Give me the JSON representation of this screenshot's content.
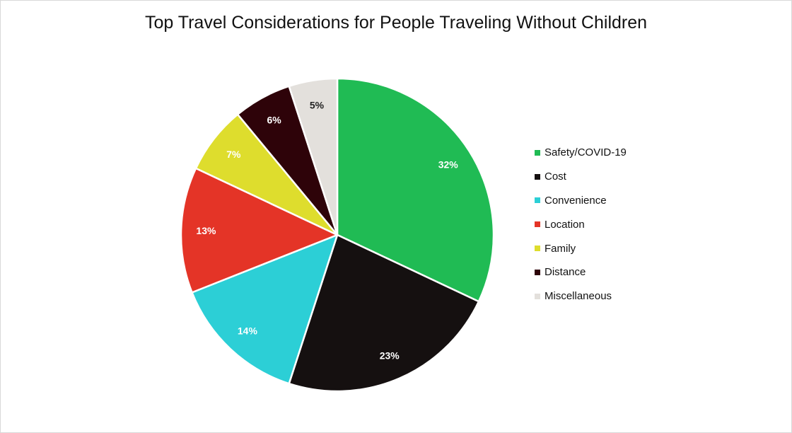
{
  "chart_data": {
    "type": "pie",
    "title": "Top Travel Considerations for People Traveling Without Children",
    "categories": [
      "Safety/COVID-19",
      "Cost",
      "Convenience",
      "Location",
      "Family",
      "Distance",
      "Miscellaneous"
    ],
    "values": [
      32,
      23,
      14,
      13,
      7,
      6,
      5
    ],
    "value_labels": [
      "32%",
      "23%",
      "14%",
      "13%",
      "7%",
      "6%",
      "5%"
    ],
    "colors": [
      "#20bb54",
      "#151010",
      "#2ccfd6",
      "#e43427",
      "#dedd2d",
      "#2e0309",
      "#e3e0dc"
    ],
    "label_colors": [
      "#ffffff",
      "#ffffff",
      "#ffffff",
      "#ffffff",
      "#ffffff",
      "#ffffff",
      "#222222"
    ],
    "start_angle_deg": 0,
    "direction": "clockwise",
    "legend": "right",
    "grid": false
  }
}
